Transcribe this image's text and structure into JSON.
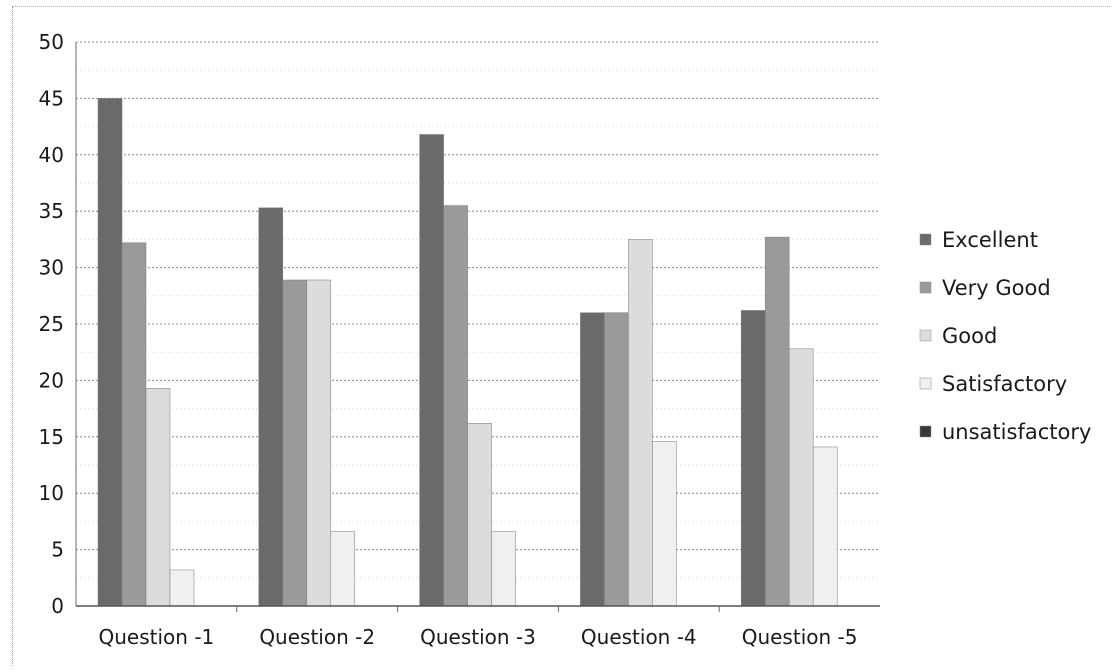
{
  "chart_data": {
    "type": "bar",
    "categories": [
      "Question -1",
      "Question -2",
      "Question -3",
      "Question -4",
      "Question -5"
    ],
    "series": [
      {
        "name": "Excellent",
        "values": [
          45,
          35.3,
          41.8,
          26,
          26.2
        ],
        "color": "#6a6a6a"
      },
      {
        "name": "Very Good",
        "values": [
          32.2,
          28.9,
          35.5,
          26,
          32.7
        ],
        "color": "#9a9a9a"
      },
      {
        "name": "Good",
        "values": [
          19.3,
          28.9,
          16.2,
          32.5,
          22.8
        ],
        "color": "#dcdcdc"
      },
      {
        "name": "Satisfactory",
        "values": [
          3.2,
          6.6,
          6.6,
          14.6,
          14.1
        ],
        "color": "#f0f0f0"
      },
      {
        "name": "unsatisfactory",
        "values": [
          0,
          0,
          0,
          0,
          0
        ],
        "color": "#3a3a3a"
      }
    ],
    "ylim": [
      0,
      50
    ],
    "yticks": [
      0,
      5,
      10,
      15,
      20,
      25,
      30,
      35,
      40,
      45,
      50
    ],
    "grid": true,
    "legend_position": "right",
    "title": "",
    "xlabel": "",
    "ylabel": ""
  }
}
